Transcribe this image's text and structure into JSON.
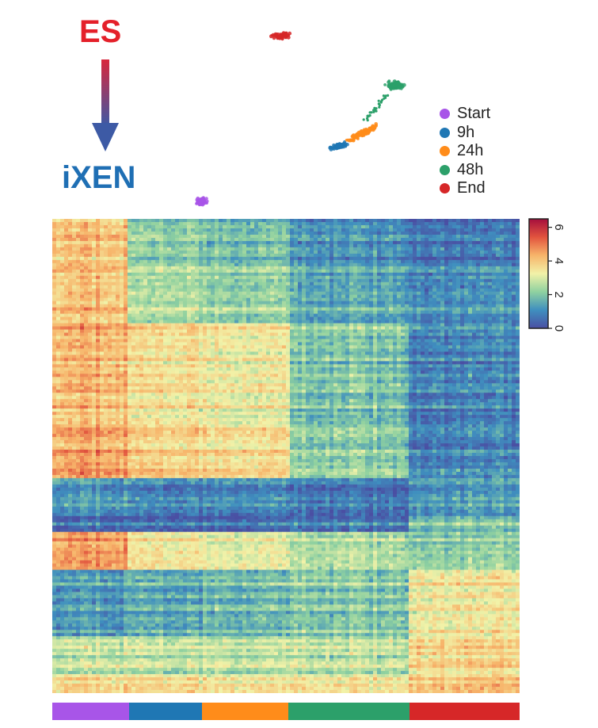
{
  "trajectory": {
    "start_label": "ES",
    "end_label": "iXEN",
    "start_color": "#e4202a",
    "end_color": "#1f6fb4"
  },
  "legend": {
    "items": [
      {
        "label": "Start",
        "color": "#a855e8"
      },
      {
        "label": "9h",
        "color": "#1f77b4"
      },
      {
        "label": "24h",
        "color": "#ff8c1a"
      },
      {
        "label": "48h",
        "color": "#2ca06a"
      },
      {
        "label": "End",
        "color": "#d62728"
      }
    ]
  },
  "chart_data": [
    {
      "type": "scatter",
      "title": "",
      "xlabel": "",
      "ylabel": "",
      "grid": false,
      "legend_position": "right",
      "series": [
        {
          "name": "Start",
          "color": "#a855e8"
        },
        {
          "name": "9h",
          "color": "#1f77b4"
        },
        {
          "name": "24h",
          "color": "#ff8c1a"
        },
        {
          "name": "48h",
          "color": "#2ca06a"
        },
        {
          "name": "End",
          "color": "#d62728"
        }
      ]
    },
    {
      "type": "heatmap",
      "title": "",
      "xlabel": "",
      "ylabel": "",
      "colorbar": {
        "ticks": [
          0,
          2,
          4,
          6
        ],
        "range": [
          0,
          6.5
        ],
        "colors": [
          "#4a4fa3",
          "#3f8fbf",
          "#8fd1a0",
          "#f2f2a8",
          "#f7b46a",
          "#e2543e",
          "#a50f3d"
        ]
      },
      "column_groups": [
        {
          "name": "Start",
          "fraction": 0.165,
          "color": "#a855e8"
        },
        {
          "name": "9h",
          "fraction": 0.155,
          "color": "#1f77b4"
        },
        {
          "name": "24h",
          "fraction": 0.185,
          "color": "#ff8c1a"
        },
        {
          "name": "48h",
          "fraction": 0.26,
          "color": "#2ca06a"
        },
        {
          "name": "End",
          "fraction": 0.235,
          "color": "#d62728"
        }
      ],
      "row_blocks": [
        {
          "fraction": 0.1,
          "values": [
            4.2,
            2.3,
            2.0,
            1.3,
            0.8
          ]
        },
        {
          "fraction": 0.12,
          "values": [
            4.0,
            2.5,
            2.2,
            1.5,
            1.0
          ]
        },
        {
          "fraction": 0.22,
          "values": [
            4.2,
            3.6,
            3.3,
            2.0,
            0.9
          ]
        },
        {
          "fraction": 0.11,
          "values": [
            4.6,
            4.0,
            3.8,
            2.3,
            1.0
          ]
        },
        {
          "fraction": 0.08,
          "values": [
            1.2,
            0.9,
            1.0,
            0.7,
            1.2
          ]
        },
        {
          "fraction": 0.03,
          "values": [
            0.6,
            0.6,
            0.6,
            0.8,
            2.0
          ]
        },
        {
          "fraction": 0.08,
          "values": [
            4.6,
            3.5,
            3.2,
            2.6,
            2.2
          ]
        },
        {
          "fraction": 0.14,
          "values": [
            1.3,
            1.6,
            1.8,
            2.1,
            3.4
          ]
        },
        {
          "fraction": 0.08,
          "values": [
            2.6,
            2.6,
            2.6,
            2.6,
            3.6
          ]
        },
        {
          "fraction": 0.04,
          "values": [
            3.6,
            3.6,
            3.4,
            3.4,
            4.0
          ]
        }
      ]
    }
  ]
}
